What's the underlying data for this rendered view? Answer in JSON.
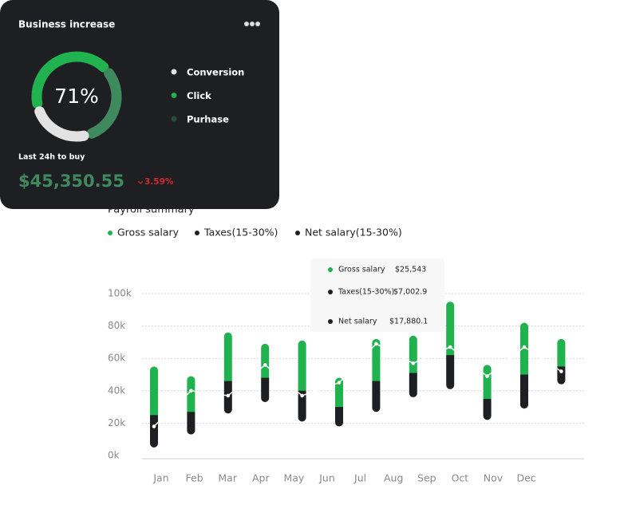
{
  "card": {
    "title": "Business increase",
    "center_label": "71%",
    "caption": "Last 24h to buy",
    "amount": "$45,350.55",
    "change": "3.59%"
  },
  "donut": {
    "type": "pie",
    "categories": [
      "Conversion",
      "Click",
      "Purhase"
    ],
    "values": [
      22,
      40,
      29
    ],
    "colors": [
      "#e2e2e2",
      "#20b24f",
      "#3e8a5e"
    ],
    "legend_colors": [
      "#e2e2e2",
      "#20b24f",
      "#2c4a38"
    ]
  },
  "chart_data": {
    "type": "bar",
    "title": "Payroll summary",
    "categories": [
      "Jan",
      "Feb",
      "Mar",
      "Apr",
      "May",
      "Jun",
      "Jul",
      "Aug",
      "Sep",
      "Oct",
      "Nov",
      "Dec"
    ],
    "series": [
      {
        "name": "Gross salary",
        "color": "#20b24f",
        "values": [
          55000,
          49000,
          76000,
          69000,
          71000,
          48000,
          72000,
          74000,
          95000,
          56000,
          82000,
          72000
        ]
      },
      {
        "name": "Taxes(15-30%)",
        "color": "#1e1f22",
        "values": [
          25000,
          27000,
          46000,
          48000,
          40000,
          30000,
          46000,
          51000,
          62000,
          35000,
          50000,
          55000
        ],
        "base": [
          5000,
          13000,
          26000,
          33000,
          21000,
          18000,
          27000,
          36000,
          41000,
          22000,
          29000,
          44000
        ]
      },
      {
        "name": "Net salary(15-30%)",
        "color": "#ffffff",
        "values": [
          18000,
          40000,
          37000,
          56000,
          37000,
          45000,
          69000,
          57000,
          67000,
          49000,
          67000,
          52000
        ]
      }
    ],
    "legend_colors": [
      "#20b24f",
      "#1e1f22",
      "#1e1f22"
    ],
    "ylim": [
      0,
      100000
    ],
    "yticks": [
      {
        "value": 0,
        "label": "0k"
      },
      {
        "value": 20000,
        "label": "20k"
      },
      {
        "value": 40000,
        "label": "40k"
      },
      {
        "value": 60000,
        "label": "60k"
      },
      {
        "value": 80000,
        "label": "80k"
      },
      {
        "value": 100000,
        "label": "100k"
      }
    ],
    "grid": true,
    "tooltip": {
      "rows": [
        {
          "label": "Gross salary",
          "value": "$25,543"
        },
        {
          "label": "Taxes(15-30%)",
          "value": "$7,002.9"
        },
        {
          "label": "Net salary",
          "value": "$17,880.1"
        }
      ]
    }
  }
}
